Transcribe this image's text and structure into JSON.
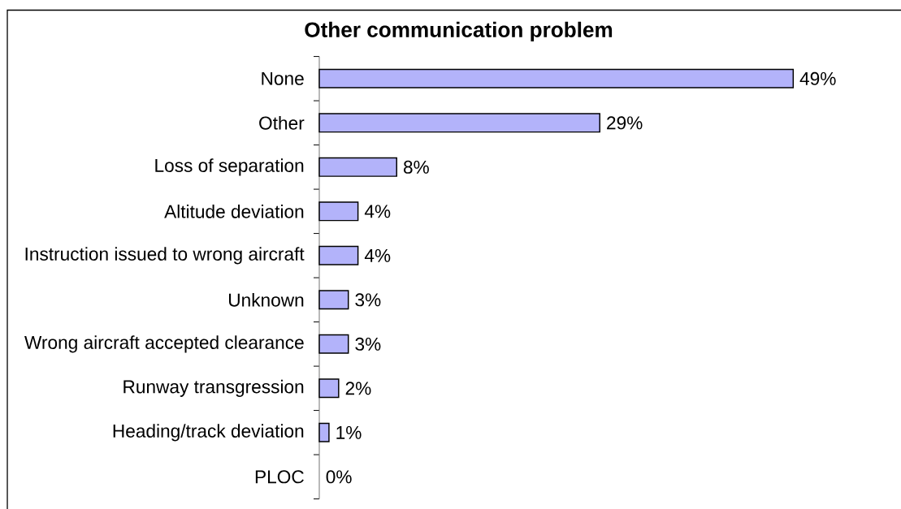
{
  "chart_data": {
    "type": "bar",
    "orientation": "horizontal",
    "title": "Other communication problem",
    "categories": [
      "None",
      "Other",
      "Loss of separation",
      "Altitude deviation",
      "Instruction issued to wrong aircraft",
      "Unknown",
      "Wrong aircraft accepted clearance",
      "Runway transgression",
      "Heading/track deviation",
      "PLOC"
    ],
    "values": [
      49,
      29,
      8,
      4,
      4,
      3,
      3,
      2,
      1,
      0
    ],
    "value_labels": [
      "49%",
      "29%",
      "8%",
      "4%",
      "4%",
      "3%",
      "3%",
      "2%",
      "1%",
      "0%"
    ],
    "color": "#b3b3fa"
  }
}
